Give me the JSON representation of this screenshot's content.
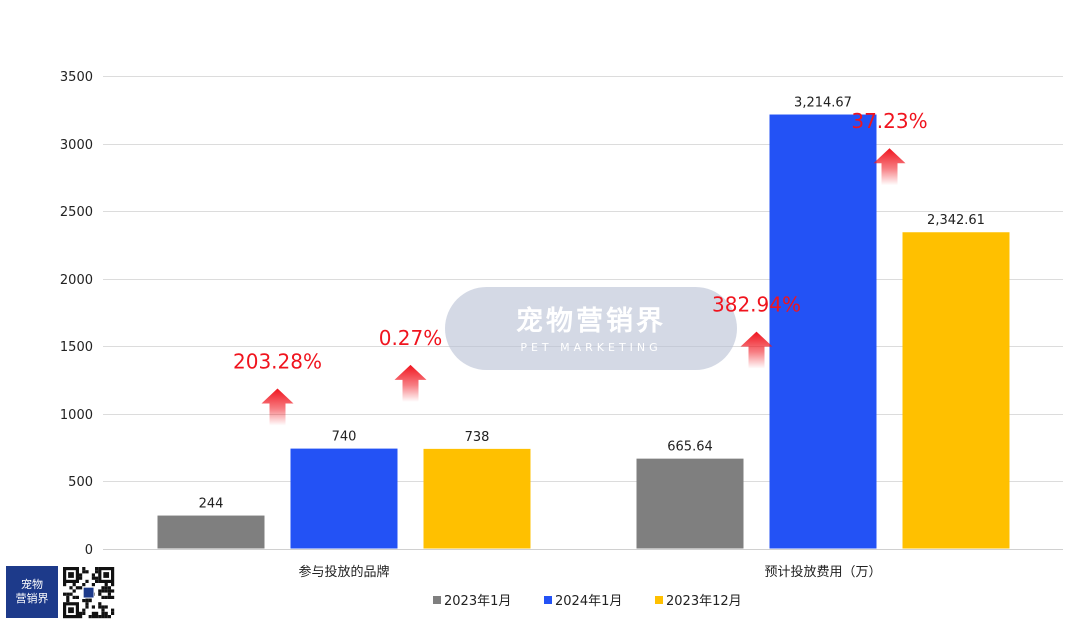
{
  "chart_data": {
    "type": "bar",
    "categories": [
      "参与投放的品牌",
      "预计投放费用（万）"
    ],
    "series": [
      {
        "name": "2023年1月",
        "color": "#7f7f7f",
        "values": [
          244,
          665.64
        ],
        "labels": [
          "244",
          "665.64"
        ]
      },
      {
        "name": "2024年1月",
        "color": "#2352f5",
        "values": [
          740,
          3214.67
        ],
        "labels": [
          "740",
          "3,214.67"
        ]
      },
      {
        "name": "2023年12月",
        "color": "#ffc000",
        "values": [
          738,
          2342.61
        ],
        "labels": [
          "738",
          "2,342.61"
        ]
      }
    ],
    "yticks": [
      "0",
      "500",
      "1000",
      "1500",
      "2000",
      "2500",
      "3000",
      "3500"
    ],
    "ylim": [
      0,
      3500
    ],
    "grid": true,
    "legend": "bottom",
    "annotations": [
      {
        "text": "203.28%",
        "category": 0,
        "between": [
          0,
          1
        ]
      },
      {
        "text": "0.27%",
        "category": 0,
        "between": [
          1,
          2
        ]
      },
      {
        "text": "382.94%",
        "category": 1,
        "between": [
          0,
          1
        ]
      },
      {
        "text": "37.23%",
        "category": 1,
        "between": [
          1,
          2
        ]
      }
    ],
    "annotation_color": "#f0141e"
  },
  "watermark": {
    "title": "宠物营销界",
    "subtitle": "PET MARKETING"
  },
  "logo": {
    "line1": "宠物",
    "line2": "营销界"
  }
}
